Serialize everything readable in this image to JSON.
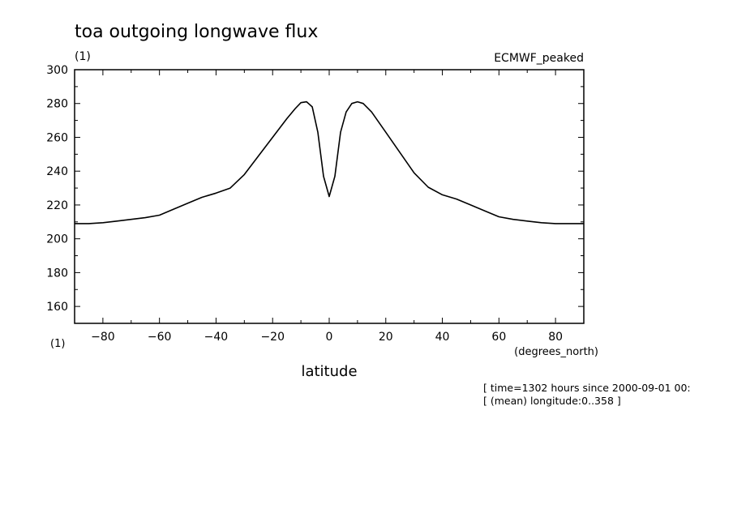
{
  "chart_data": {
    "type": "line",
    "title": "toa outgoing longwave flux",
    "units_label": "(1)",
    "x_units_label": "(1)",
    "dataset_label": "ECMWF_peaked",
    "xlabel": "latitude",
    "xunits": "(degrees_north)",
    "xlim": [
      -90,
      90
    ],
    "ylim": [
      150,
      300
    ],
    "x_ticks": [
      -80,
      -60,
      -40,
      -20,
      0,
      20,
      40,
      60,
      80
    ],
    "y_ticks": [
      160,
      180,
      200,
      220,
      240,
      260,
      280,
      300
    ],
    "grid": false,
    "series": [
      {
        "x": [
          -90,
          -85,
          -80,
          -75,
          -70,
          -65,
          -60,
          -55,
          -50,
          -45,
          -40,
          -35,
          -30,
          -25,
          -20,
          -15,
          -12,
          -10,
          -8,
          -6,
          -4,
          -2,
          0,
          2,
          4,
          6,
          8,
          10,
          12,
          15,
          20,
          25,
          30,
          35,
          40,
          45,
          50,
          55,
          60,
          65,
          70,
          75,
          80,
          85,
          90
        ],
        "y": [
          209,
          209,
          209.5,
          210.5,
          211.5,
          212.5,
          214,
          217.5,
          221,
          224.5,
          227,
          230,
          238,
          249,
          260,
          271,
          277,
          280.5,
          281,
          278,
          263,
          237,
          225,
          237,
          263,
          275,
          280,
          281,
          280,
          275,
          263,
          251,
          239,
          230.5,
          226,
          223.5,
          220,
          216.5,
          213,
          211.5,
          210.5,
          209.5,
          209,
          209,
          209
        ]
      }
    ]
  },
  "annotations": {
    "time_note": "[ time=1302 hours since 2000-09-01 00:",
    "longitude_note": "[ (mean) longitude:0..358 ]"
  },
  "colors": {
    "line": "#000000",
    "background": "#ffffff"
  }
}
